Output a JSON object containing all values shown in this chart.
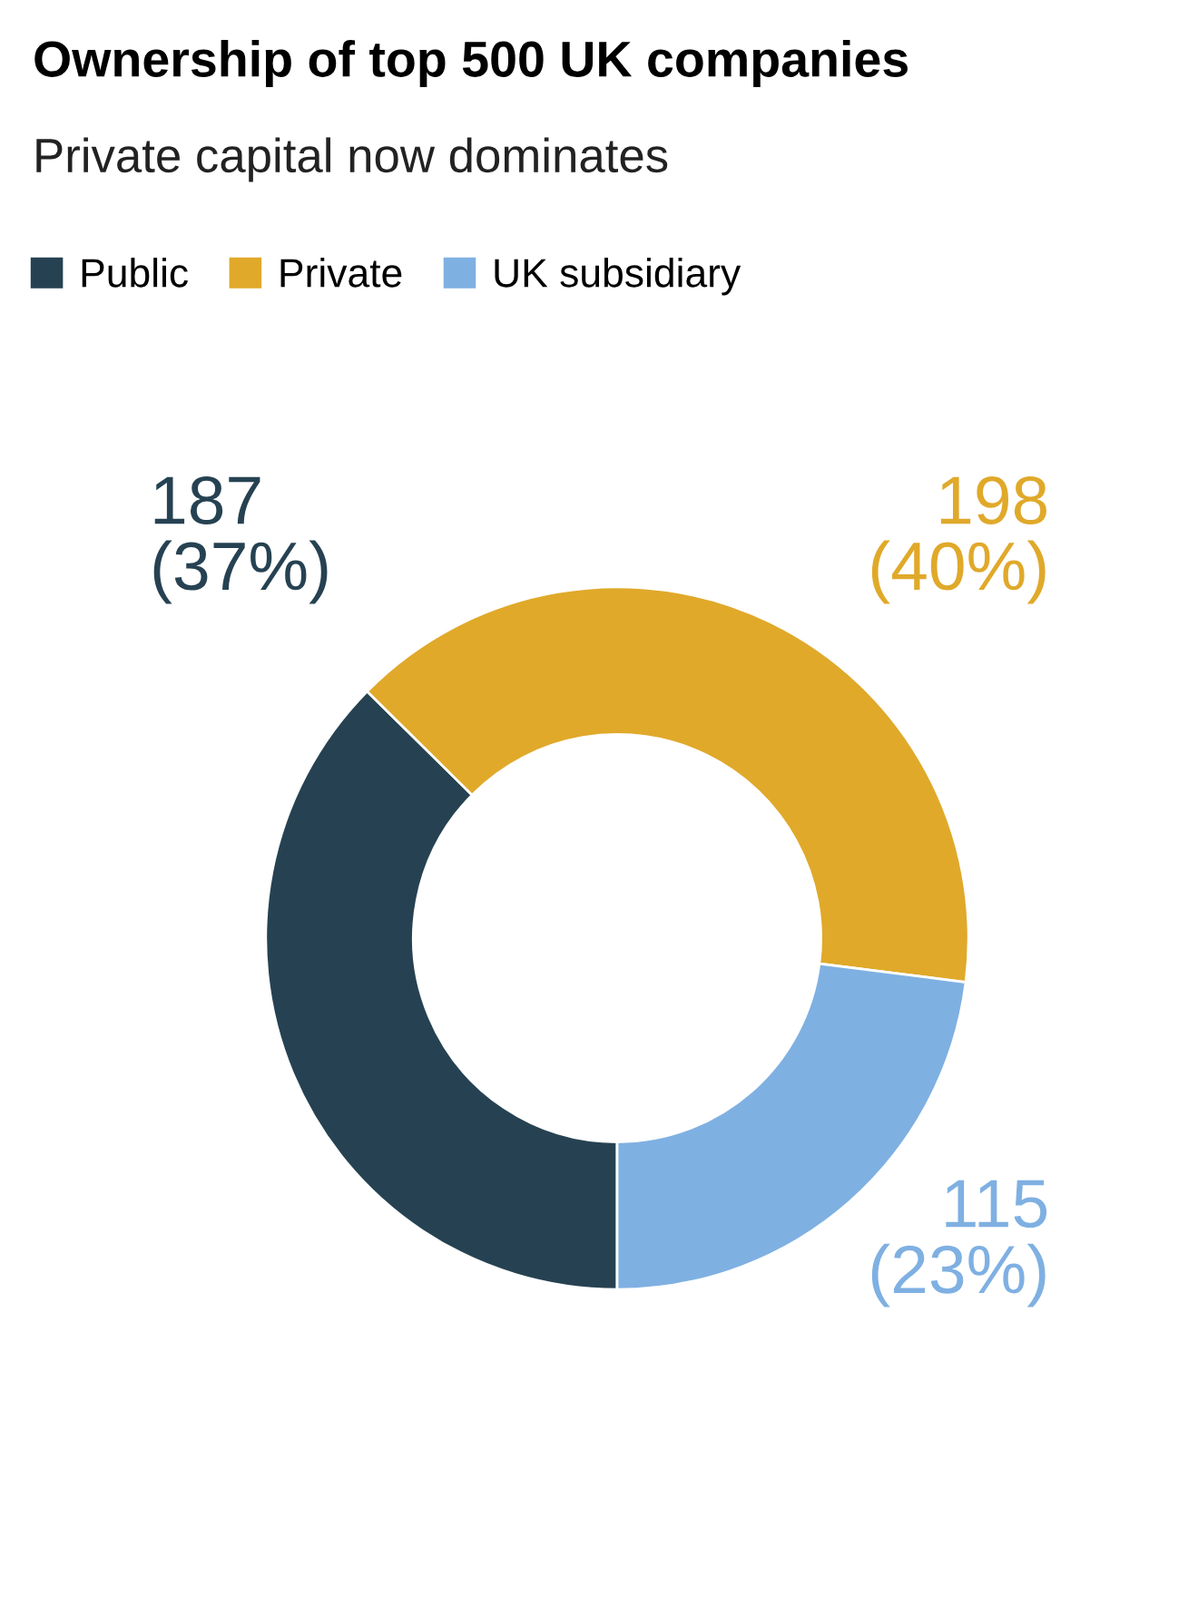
{
  "chart_data": {
    "type": "donut",
    "title": "Ownership of top 500 UK companies",
    "subtitle": "Private capital now dominates",
    "categories": [
      "Public",
      "Private",
      "UK subsidiary"
    ],
    "values": [
      187,
      198,
      115
    ],
    "colors": [
      "#264252",
      "#e0a92a",
      "#7fb0e2"
    ],
    "value_labels": [
      "187\n(37%)",
      "198\n(40%)",
      "115\n(23%)"
    ],
    "legend": "top left"
  }
}
